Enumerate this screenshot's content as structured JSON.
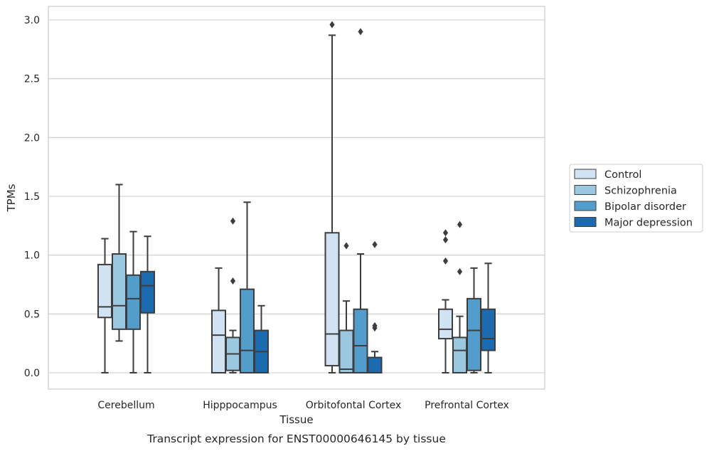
{
  "caption": "Transcript expression for ENST00000646145 by tissue",
  "chart_data": {
    "type": "boxplot",
    "xlabel": "Tissue",
    "ylabel": "TPMs",
    "ylim": [
      -0.14,
      3.11
    ],
    "yticks": [
      "0.0",
      "0.5",
      "1.0",
      "1.5",
      "2.0",
      "2.5",
      "3.0"
    ],
    "grid": "horizontal",
    "legend_placement": "outside-right",
    "categories": [
      "Cerebellum",
      "Hipppocampus",
      "Orbitofontal Cortex",
      "Prefrontal Cortex"
    ],
    "series": [
      {
        "name": "Control",
        "color": "#d1e2f2",
        "boxes": [
          {
            "whisker_low": 0.0,
            "q1": 0.47,
            "median": 0.56,
            "q3": 0.92,
            "whisker_high": 1.14,
            "outliers": []
          },
          {
            "whisker_low": 0.0,
            "q1": 0.0,
            "median": 0.32,
            "q3": 0.53,
            "whisker_high": 0.89,
            "outliers": []
          },
          {
            "whisker_low": 0.0,
            "q1": 0.06,
            "median": 0.33,
            "q3": 1.19,
            "whisker_high": 2.87,
            "outliers": [
              2.96
            ]
          },
          {
            "whisker_low": 0.0,
            "q1": 0.29,
            "median": 0.37,
            "q3": 0.54,
            "whisker_high": 0.62,
            "outliers": [
              0.95,
              1.13,
              1.19
            ]
          }
        ]
      },
      {
        "name": "Schizophrenia",
        "color": "#9ac8e0",
        "boxes": [
          {
            "whisker_low": 0.27,
            "q1": 0.37,
            "median": 0.57,
            "q3": 1.01,
            "whisker_high": 1.6,
            "outliers": []
          },
          {
            "whisker_low": 0.0,
            "q1": 0.02,
            "median": 0.16,
            "q3": 0.3,
            "whisker_high": 0.36,
            "outliers": [
              0.78,
              1.29
            ]
          },
          {
            "whisker_low": 0.0,
            "q1": 0.0,
            "median": 0.03,
            "q3": 0.36,
            "whisker_high": 0.61,
            "outliers": [
              1.08
            ]
          },
          {
            "whisker_low": 0.0,
            "q1": 0.0,
            "median": 0.19,
            "q3": 0.3,
            "whisker_high": 0.48,
            "outliers": [
              0.86,
              1.26
            ]
          }
        ]
      },
      {
        "name": "Bipolar disorder",
        "color": "#529dcc",
        "boxes": [
          {
            "whisker_low": 0.0,
            "q1": 0.37,
            "median": 0.63,
            "q3": 0.83,
            "whisker_high": 1.2,
            "outliers": []
          },
          {
            "whisker_low": 0.0,
            "q1": 0.0,
            "median": 0.19,
            "q3": 0.71,
            "whisker_high": 1.45,
            "outliers": []
          },
          {
            "whisker_low": 0.0,
            "q1": 0.0,
            "median": 0.23,
            "q3": 0.54,
            "whisker_high": 1.01,
            "outliers": [
              2.9
            ]
          },
          {
            "whisker_low": 0.0,
            "q1": 0.02,
            "median": 0.36,
            "q3": 0.63,
            "whisker_high": 0.89,
            "outliers": []
          }
        ]
      },
      {
        "name": "Major depression",
        "color": "#1c6aaf",
        "boxes": [
          {
            "whisker_low": 0.0,
            "q1": 0.51,
            "median": 0.74,
            "q3": 0.86,
            "whisker_high": 1.16,
            "outliers": []
          },
          {
            "whisker_low": 0.0,
            "q1": 0.0,
            "median": 0.18,
            "q3": 0.36,
            "whisker_high": 0.57,
            "outliers": []
          },
          {
            "whisker_low": 0.0,
            "q1": 0.0,
            "median": 0.0,
            "q3": 0.13,
            "whisker_high": 0.18,
            "outliers": [
              0.38,
              0.4,
              1.09
            ]
          },
          {
            "whisker_low": 0.0,
            "q1": 0.19,
            "median": 0.29,
            "q3": 0.54,
            "whisker_high": 0.93,
            "outliers": []
          }
        ]
      }
    ]
  }
}
